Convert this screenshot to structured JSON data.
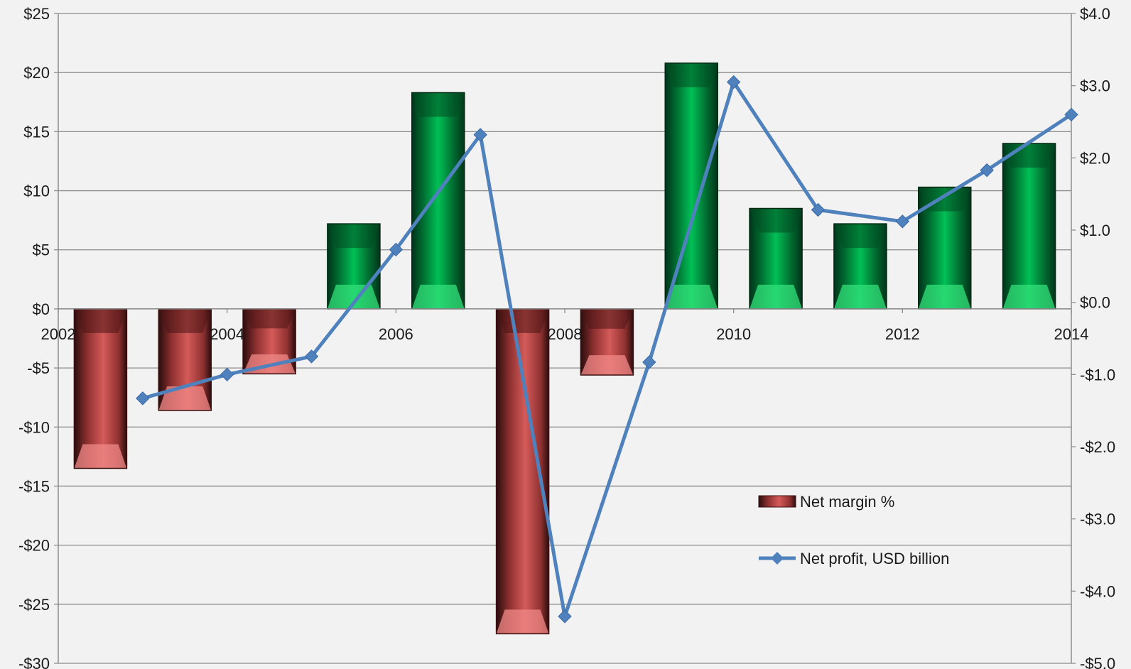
{
  "chart_data": {
    "type": "bar",
    "title": "",
    "xlabel": "",
    "ylabel": "",
    "x_ticks": [
      "2002",
      "2004",
      "2006",
      "2008",
      "2010",
      "2012",
      "2014"
    ],
    "left_axis": {
      "ylim": [
        -30,
        25
      ],
      "ticks": [
        25,
        20,
        15,
        10,
        5,
        0,
        -5,
        -10,
        -15,
        -20,
        -25,
        -30
      ],
      "tick_labels": [
        "$25",
        "$20",
        "$15",
        "$10",
        "$5",
        "$0",
        "-$5",
        "-$10",
        "-$15",
        "-$20",
        "-$25",
        "-$30"
      ]
    },
    "right_axis": {
      "ylim": [
        -5.0,
        4.0
      ],
      "ticks": [
        4.0,
        3.0,
        2.0,
        1.0,
        0.0,
        -1.0,
        -2.0,
        -3.0,
        -4.0,
        -5.0
      ],
      "tick_labels": [
        "$4.0",
        "$3.0",
        "$2.0",
        "$1.0",
        "$0.0",
        "-$1.0",
        "-$2.0",
        "-$3.0",
        "-$4.0",
        "-$5.0"
      ]
    },
    "grid": true,
    "legend_position": "lower-right",
    "series": [
      {
        "name": "Net margin %",
        "kind": "bar",
        "axis": "left",
        "x": [
          2002.5,
          2003.5,
          2004.5,
          2005.5,
          2006.5,
          2007.5,
          2008.5,
          2009.5,
          2010.5,
          2011.5,
          2012.5,
          2013.5
        ],
        "values": [
          -13.5,
          -8.6,
          -5.5,
          7.2,
          18.3,
          -27.5,
          -5.6,
          20.8,
          8.5,
          7.2,
          10.3,
          14.0
        ],
        "positive_color": "#00b050",
        "negative_color": "#c0504d"
      },
      {
        "name": "Net profit, USD billion",
        "kind": "line",
        "axis": "right",
        "x": [
          2003,
          2004,
          2005,
          2006,
          2007,
          2008,
          2009,
          2010,
          2011,
          2012,
          2013,
          2014
        ],
        "values": [
          -1.33,
          -1.0,
          -0.75,
          0.73,
          2.32,
          -4.35,
          -0.83,
          3.05,
          1.28,
          1.12,
          1.83,
          2.6
        ],
        "color": "#4f81bd"
      }
    ]
  }
}
